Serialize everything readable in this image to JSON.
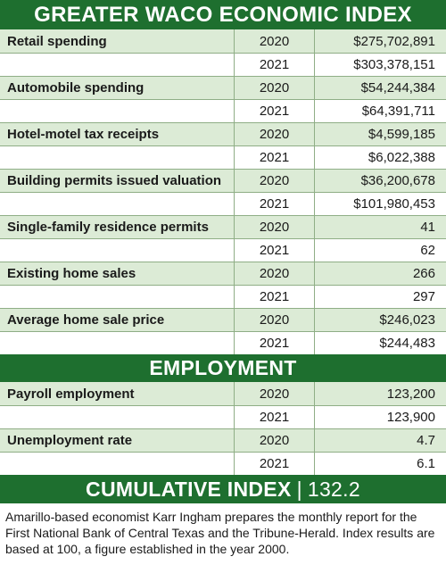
{
  "title": "GREATER WACO ECONOMIC INDEX",
  "economic": [
    {
      "label": "Retail spending",
      "rows": [
        {
          "year": "2020",
          "value": "$275,702,891"
        },
        {
          "year": "2021",
          "value": "$303,378,151"
        }
      ]
    },
    {
      "label": "Automobile spending",
      "rows": [
        {
          "year": "2020",
          "value": "$54,244,384"
        },
        {
          "year": "2021",
          "value": "$64,391,711"
        }
      ]
    },
    {
      "label": "Hotel-motel tax receipts",
      "rows": [
        {
          "year": "2020",
          "value": "$4,599,185"
        },
        {
          "year": "2021",
          "value": "$6,022,388"
        }
      ]
    },
    {
      "label": "Building permits issued valuation",
      "rows": [
        {
          "year": "2020",
          "value": "$36,200,678"
        },
        {
          "year": "2021",
          "value": "$101,980,453"
        }
      ]
    },
    {
      "label": "Single-family residence permits",
      "rows": [
        {
          "year": "2020",
          "value": "41"
        },
        {
          "year": "2021",
          "value": "62"
        }
      ]
    },
    {
      "label": "Existing home sales",
      "rows": [
        {
          "year": "2020",
          "value": "266"
        },
        {
          "year": "2021",
          "value": "297"
        }
      ]
    },
    {
      "label": "Average home sale price",
      "rows": [
        {
          "year": "2020",
          "value": "$246,023"
        },
        {
          "year": "2021",
          "value": "$244,483"
        }
      ]
    }
  ],
  "employment_heading": "EMPLOYMENT",
  "employment": [
    {
      "label": "Payroll employment",
      "rows": [
        {
          "year": "2020",
          "value": "123,200"
        },
        {
          "year": "2021",
          "value": "123,900"
        }
      ]
    },
    {
      "label": "Unemployment rate",
      "rows": [
        {
          "year": "2020",
          "value": "4.7"
        },
        {
          "year": "2021",
          "value": "6.1"
        }
      ]
    }
  ],
  "cumulative": {
    "label": "CUMULATIVE INDEX",
    "separator": "|",
    "value": "132.2"
  },
  "note": "Amarillo-based economist Karr Ingham prepares the monthly report for the First National Bank of Central Texas and the Tribune-Herald. Index results are based at 100, a figure established in the year 2000.",
  "colors": {
    "banner": "#1e6f2f",
    "row_tint": "#dcebd6",
    "rule": "#8fae86"
  }
}
